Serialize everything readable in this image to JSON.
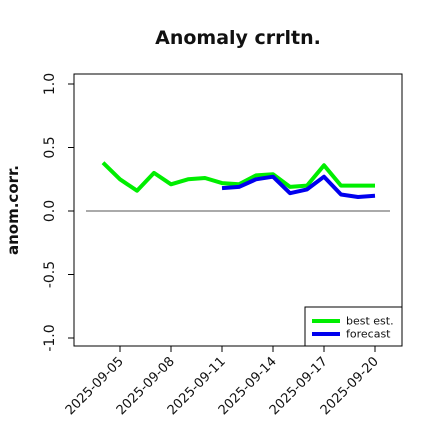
{
  "chart_data": {
    "type": "line",
    "title": "Anomaly crrltn.",
    "xlabel": "",
    "ylabel": "anom.corr.",
    "ylim": [
      -1.0,
      1.0
    ],
    "yticks": [
      "-1.0",
      "-0.5",
      "0.0",
      "0.5",
      "1.0"
    ],
    "xticks": [
      "2025-09-05",
      "2025-09-08",
      "2025-09-11",
      "2025-09-14",
      "2025-09-17",
      "2025-09-20"
    ],
    "highlight_tick": "2025-09-11",
    "highlight_color": "#228B22",
    "x": [
      "2025-09-04",
      "2025-09-05",
      "2025-09-06",
      "2025-09-07",
      "2025-09-08",
      "2025-09-09",
      "2025-09-10",
      "2025-09-11",
      "2025-09-12",
      "2025-09-13",
      "2025-09-14",
      "2025-09-15",
      "2025-09-16",
      "2025-09-17",
      "2025-09-18",
      "2025-09-19",
      "2025-09-20"
    ],
    "reference_line": 0.0,
    "legend_position": "bottom-right",
    "series": [
      {
        "name": "best est.",
        "color": "#00ee00",
        "values": [
          0.38,
          0.25,
          0.16,
          0.3,
          0.21,
          0.25,
          0.26,
          0.22,
          0.21,
          0.28,
          0.29,
          0.19,
          0.2,
          0.36,
          0.2,
          0.2,
          0.2
        ]
      },
      {
        "name": "forecast",
        "color": "#0000ee",
        "values": [
          null,
          null,
          null,
          null,
          null,
          null,
          null,
          0.18,
          0.19,
          0.25,
          0.27,
          0.14,
          0.17,
          0.27,
          0.13,
          0.11,
          0.12
        ]
      }
    ]
  }
}
